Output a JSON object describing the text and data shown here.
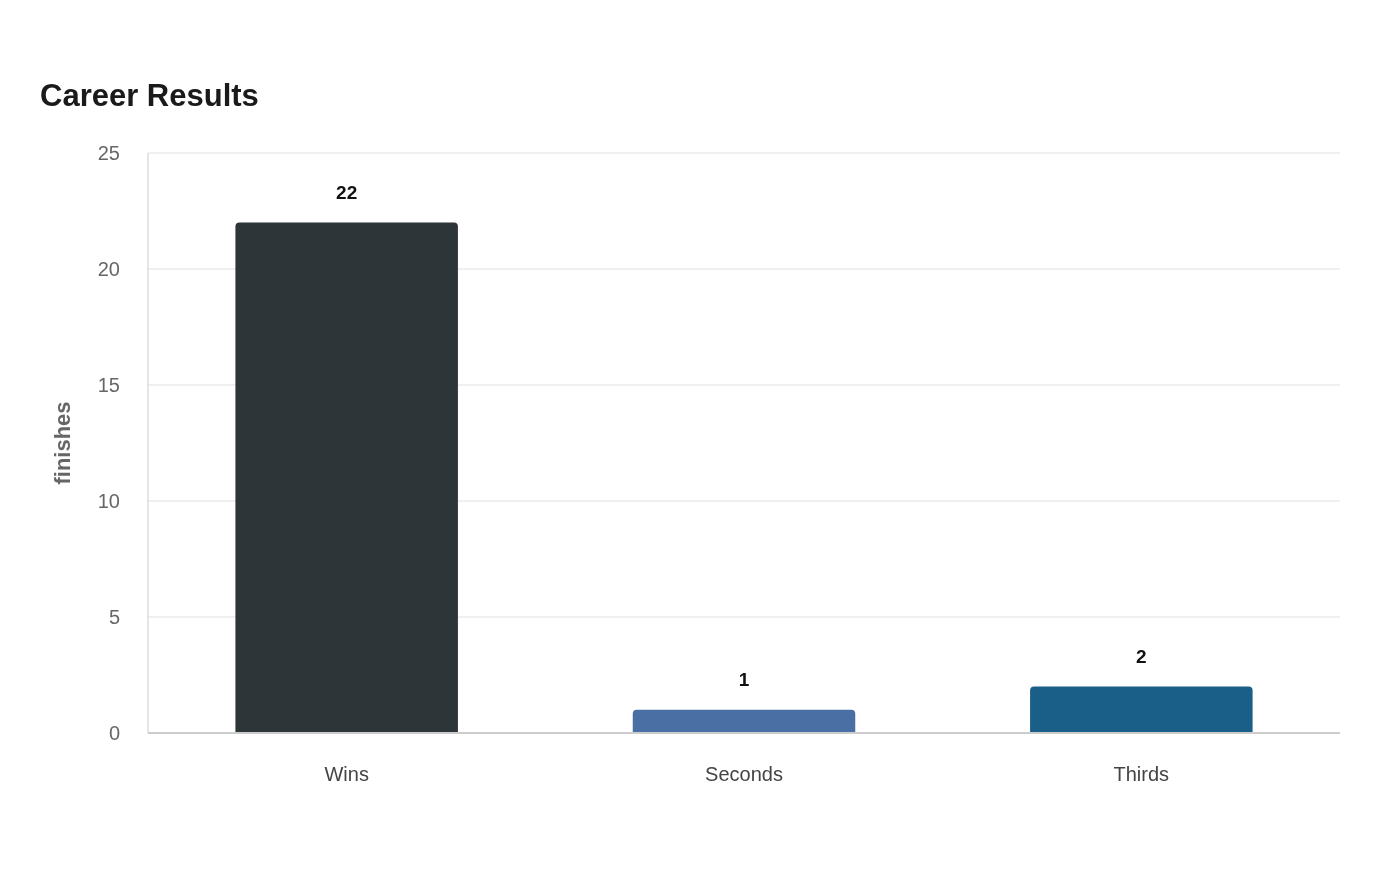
{
  "chart_data": {
    "type": "bar",
    "title": "Career Results",
    "ylabel": "finishes",
    "categories": [
      "Wins",
      "Seconds",
      "Thirds"
    ],
    "values": [
      22,
      1,
      2
    ],
    "colors": [
      "#2e3538",
      "#4a6fa5",
      "#1a5f87"
    ],
    "ylim": [
      0,
      25
    ],
    "yticks": [
      0,
      5,
      10,
      15,
      20,
      25
    ],
    "grid": "y",
    "data_labels": true
  }
}
